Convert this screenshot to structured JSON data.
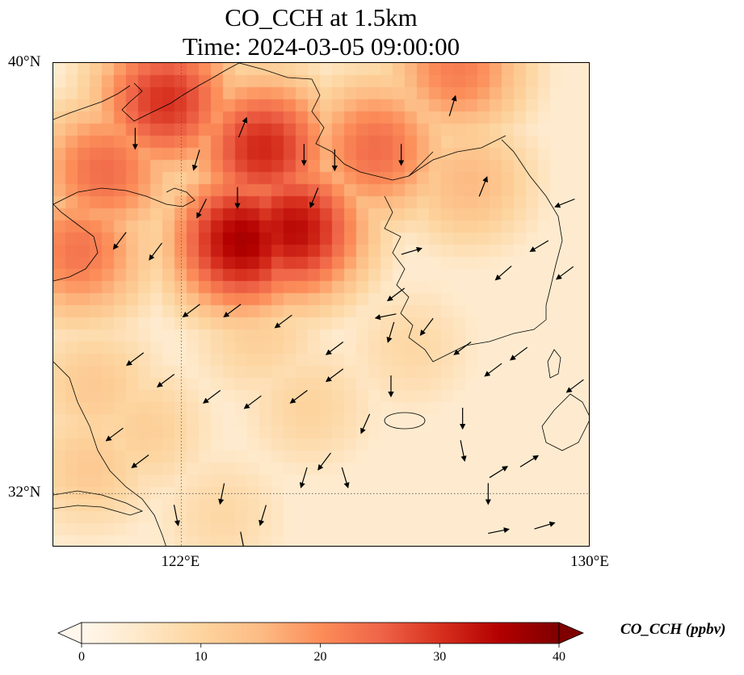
{
  "title_line1": "CO_CCH at 1.5km",
  "title_line2": "Time: 2024-03-05 09:00:00",
  "map": {
    "lon_range": [
      119.5,
      130
    ],
    "lat_range": [
      31.0,
      40.0
    ],
    "lat_ticks": [
      {
        "value": 40,
        "label": "40°N"
      },
      {
        "value": 32,
        "label": "32°N"
      }
    ],
    "lon_ticks": [
      {
        "value": 122,
        "label": "122°E"
      },
      {
        "value": 130,
        "label": "130°E"
      }
    ],
    "gridlines": "dotted",
    "hotspots": [
      {
        "lon": 123.2,
        "lat": 36.7,
        "value": 36
      },
      {
        "lon": 124.2,
        "lat": 36.9,
        "value": 34
      },
      {
        "lon": 121.7,
        "lat": 39.3,
        "value": 30
      },
      {
        "lon": 123.6,
        "lat": 38.4,
        "value": 31
      },
      {
        "lon": 125.8,
        "lat": 38.4,
        "value": 24
      },
      {
        "lon": 127.4,
        "lat": 39.9,
        "value": 22
      },
      {
        "lon": 120.5,
        "lat": 38.0,
        "value": 24
      },
      {
        "lon": 120.0,
        "lat": 36.5,
        "value": 23
      },
      {
        "lon": 127.6,
        "lat": 37.8,
        "value": 15
      },
      {
        "lon": 123.5,
        "lat": 35.0,
        "value": 11
      },
      {
        "lon": 120.3,
        "lat": 34.0,
        "value": 12
      },
      {
        "lon": 120.2,
        "lat": 32.5,
        "value": 12
      },
      {
        "lon": 121.3,
        "lat": 33.2,
        "value": 11
      },
      {
        "lon": 124.5,
        "lat": 33.6,
        "value": 10
      },
      {
        "lon": 126.5,
        "lat": 34.7,
        "value": 9
      },
      {
        "lon": 122.8,
        "lat": 31.6,
        "value": 9
      }
    ],
    "wind_vectors": [
      {
        "lon": 121.1,
        "lat": 38.6,
        "u": 0,
        "v": -1
      },
      {
        "lon": 122.3,
        "lat": 38.2,
        "u": -0.3,
        "v": -1
      },
      {
        "lon": 123.2,
        "lat": 38.8,
        "u": 0.4,
        "v": 1
      },
      {
        "lon": 124.4,
        "lat": 38.3,
        "u": 0,
        "v": -1
      },
      {
        "lon": 125.0,
        "lat": 38.2,
        "u": 0,
        "v": -1
      },
      {
        "lon": 126.3,
        "lat": 38.3,
        "u": 0,
        "v": -1
      },
      {
        "lon": 127.3,
        "lat": 39.2,
        "u": 0.3,
        "v": 1
      },
      {
        "lon": 127.9,
        "lat": 37.7,
        "u": 0.4,
        "v": 1
      },
      {
        "lon": 129.5,
        "lat": 37.4,
        "u": -1,
        "v": -0.4
      },
      {
        "lon": 129.0,
        "lat": 36.6,
        "u": -1,
        "v": -0.6
      },
      {
        "lon": 120.8,
        "lat": 36.7,
        "u": -0.6,
        "v": -0.8
      },
      {
        "lon": 121.5,
        "lat": 36.5,
        "u": -0.6,
        "v": -0.8
      },
      {
        "lon": 122.4,
        "lat": 37.3,
        "u": -0.4,
        "v": -0.8
      },
      {
        "lon": 123.1,
        "lat": 37.5,
        "u": 0,
        "v": -1
      },
      {
        "lon": 124.6,
        "lat": 37.5,
        "u": -0.4,
        "v": -1
      },
      {
        "lon": 126.5,
        "lat": 36.5,
        "u": 1,
        "v": 0.3
      },
      {
        "lon": 128.3,
        "lat": 36.1,
        "u": -0.8,
        "v": -0.7
      },
      {
        "lon": 129.5,
        "lat": 36.1,
        "u": -0.8,
        "v": -0.6
      },
      {
        "lon": 122.2,
        "lat": 35.4,
        "u": -0.8,
        "v": -0.6
      },
      {
        "lon": 123.0,
        "lat": 35.4,
        "u": -0.8,
        "v": -0.6
      },
      {
        "lon": 124.0,
        "lat": 35.2,
        "u": -0.8,
        "v": -0.6
      },
      {
        "lon": 126.0,
        "lat": 35.3,
        "u": -1,
        "v": -0.2
      },
      {
        "lon": 125.0,
        "lat": 34.7,
        "u": -0.8,
        "v": -0.6
      },
      {
        "lon": 126.2,
        "lat": 35.7,
        "u": -0.8,
        "v": -0.6
      },
      {
        "lon": 121.1,
        "lat": 34.5,
        "u": -0.8,
        "v": -0.6
      },
      {
        "lon": 121.7,
        "lat": 34.1,
        "u": -0.8,
        "v": -0.6
      },
      {
        "lon": 122.6,
        "lat": 33.8,
        "u": -0.8,
        "v": -0.6
      },
      {
        "lon": 123.4,
        "lat": 33.7,
        "u": -0.8,
        "v": -0.6
      },
      {
        "lon": 124.3,
        "lat": 33.8,
        "u": -0.8,
        "v": -0.6
      },
      {
        "lon": 125.0,
        "lat": 34.2,
        "u": -0.8,
        "v": -0.6
      },
      {
        "lon": 128.6,
        "lat": 34.6,
        "u": -0.8,
        "v": -0.6
      },
      {
        "lon": 129.7,
        "lat": 34.0,
        "u": -0.8,
        "v": -0.6
      },
      {
        "lon": 120.7,
        "lat": 33.1,
        "u": -0.8,
        "v": -0.6
      },
      {
        "lon": 121.2,
        "lat": 32.6,
        "u": -0.8,
        "v": -0.6
      },
      {
        "lon": 125.6,
        "lat": 33.3,
        "u": -0.4,
        "v": -0.9
      },
      {
        "lon": 124.8,
        "lat": 32.6,
        "u": -0.6,
        "v": -0.8
      },
      {
        "lon": 122.8,
        "lat": 32.0,
        "u": -0.2,
        "v": -1
      },
      {
        "lon": 123.6,
        "lat": 31.6,
        "u": -0.3,
        "v": -1
      },
      {
        "lon": 124.4,
        "lat": 32.3,
        "u": -0.3,
        "v": -1
      },
      {
        "lon": 125.2,
        "lat": 32.3,
        "u": 0.3,
        "v": -1
      },
      {
        "lon": 127.5,
        "lat": 32.8,
        "u": 0.2,
        "v": -1
      },
      {
        "lon": 128.0,
        "lat": 32.0,
        "u": 0,
        "v": -1
      },
      {
        "lon": 123.2,
        "lat": 31.1,
        "u": 0.2,
        "v": -1
      },
      {
        "lon": 121.9,
        "lat": 31.6,
        "u": 0.2,
        "v": -1
      },
      {
        "lon": 122.9,
        "lat": 30.6,
        "u": 0,
        "v": -1
      },
      {
        "lon": 124.1,
        "lat": 30.4,
        "u": 0.2,
        "v": -1
      },
      {
        "lon": 125.0,
        "lat": 30.1,
        "u": 0.5,
        "v": -0.9
      },
      {
        "lon": 126.2,
        "lat": 30.4,
        "u": 0.7,
        "v": -0.6
      },
      {
        "lon": 126.8,
        "lat": 30.3,
        "u": 1,
        "v": -0.2
      },
      {
        "lon": 127.8,
        "lat": 30.1,
        "u": 1,
        "v": -0.3
      },
      {
        "lon": 128.8,
        "lat": 30.2,
        "u": 1,
        "v": 0.1
      },
      {
        "lon": 129.5,
        "lat": 30.8,
        "u": 1,
        "v": 0
      },
      {
        "lon": 128.2,
        "lat": 31.3,
        "u": 1,
        "v": 0.2
      },
      {
        "lon": 129.1,
        "lat": 31.4,
        "u": 1,
        "v": 0.3
      },
      {
        "lon": 128.9,
        "lat": 29.5,
        "u": 1,
        "v": 0.1
      },
      {
        "lon": 130.0,
        "lat": 30.0,
        "u": 1,
        "v": 0
      },
      {
        "lon": 126.6,
        "lat": 29.0,
        "u": 1,
        "v": -0.1
      },
      {
        "lon": 126.3,
        "lat": 29.9,
        "u": 1,
        "v": 0.1
      },
      {
        "lon": 126.9,
        "lat": 29.2,
        "u": 1,
        "v": 0.2
      },
      {
        "lon": 127.1,
        "lat": 28.9,
        "u": 1,
        "v": 0.3
      },
      {
        "lon": 120.3,
        "lat": 30.0,
        "u": 0,
        "v": -1
      },
      {
        "lon": 121.4,
        "lat": 30.0,
        "u": 0.3,
        "v": -1
      },
      {
        "lon": 128.2,
        "lat": 32.4,
        "u": 0.8,
        "v": 0.5
      },
      {
        "lon": 128.8,
        "lat": 32.6,
        "u": 0.8,
        "v": 0.5
      },
      {
        "lon": 126.1,
        "lat": 35.0,
        "u": -0.3,
        "v": -1
      },
      {
        "lon": 126.8,
        "lat": 35.1,
        "u": -0.6,
        "v": -0.8
      },
      {
        "lon": 127.5,
        "lat": 34.7,
        "u": -0.8,
        "v": -0.6
      },
      {
        "lon": 128.1,
        "lat": 34.3,
        "u": -0.8,
        "v": -0.6
      },
      {
        "lon": 126.1,
        "lat": 34.0,
        "u": 0,
        "v": -1
      },
      {
        "lon": 127.5,
        "lat": 33.4,
        "u": 0,
        "v": -1
      }
    ],
    "features": [
      {
        "name": "Shandong Peninsula"
      },
      {
        "name": "Liaodong Peninsula"
      },
      {
        "name": "Korean Peninsula"
      },
      {
        "name": "Jeju Island"
      },
      {
        "name": "Yangtze Estuary"
      }
    ]
  },
  "colorbar": {
    "colormap": "OrRd",
    "label": "CO_CCH (ppbv)",
    "min": 0,
    "max": 40,
    "ticks": [
      {
        "value": 0,
        "label": "0"
      },
      {
        "value": 10,
        "label": "10"
      },
      {
        "value": 20,
        "label": "20"
      },
      {
        "value": 30,
        "label": "30"
      },
      {
        "value": 40,
        "label": "40"
      }
    ],
    "stops": [
      "#fff7ec",
      "#fee8c8",
      "#fdd49e",
      "#fdbb84",
      "#fc8d59",
      "#ef6548",
      "#d7301f",
      "#b30000",
      "#7f0000"
    ],
    "extend": "both"
  }
}
